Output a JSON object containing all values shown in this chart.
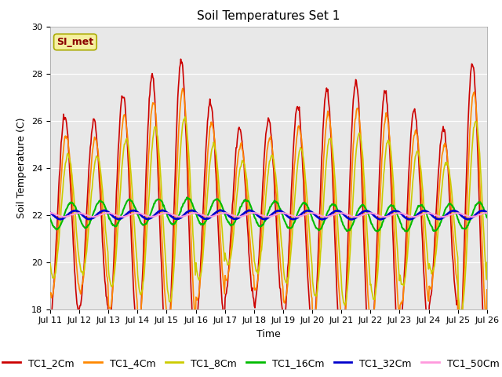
{
  "title": "Soil Temperatures Set 1",
  "xlabel": "Time",
  "ylabel": "Soil Temperature (C)",
  "ylim": [
    18,
    30
  ],
  "bg_color": "#e8e8e8",
  "annotation": "SI_met",
  "annotation_color": "#8b0000",
  "annotation_bg": "#f5f0a0",
  "x_tick_labels": [
    "Jul 11",
    "Jul 12",
    "Jul 13",
    "Jul 14",
    "Jul 15",
    "Jul 16",
    "Jul 17",
    "Jul 18",
    "Jul 19",
    "Jul 20",
    "Jul 21",
    "Jul 22",
    "Jul 23",
    "Jul 24",
    "Jul 25",
    "Jul 26"
  ],
  "series_names": [
    "TC1_2Cm",
    "TC1_4Cm",
    "TC1_8Cm",
    "TC1_16Cm",
    "TC1_32Cm",
    "TC1_50Cm"
  ],
  "series_colors": [
    "#cc0000",
    "#ff8800",
    "#cccc00",
    "#00bb00",
    "#0000cc",
    "#ff99dd"
  ],
  "series_lw": [
    1.2,
    1.2,
    1.2,
    1.5,
    2.0,
    1.5
  ],
  "title_fontsize": 11,
  "axis_fontsize": 9,
  "tick_fontsize": 8,
  "legend_fontsize": 9
}
